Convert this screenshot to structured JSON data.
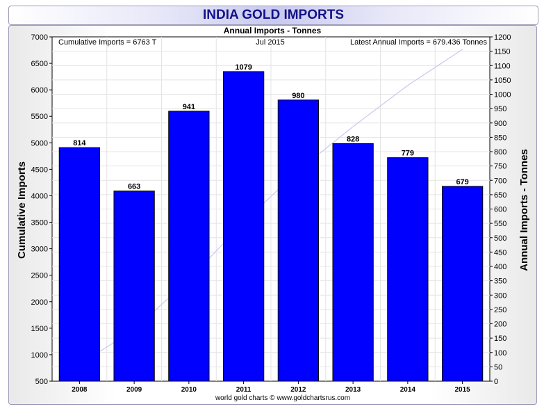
{
  "title": "INDIA GOLD IMPORTS",
  "chart_data": {
    "type": "bar",
    "subtitle": "Annual Imports - Tonnes",
    "categories": [
      "2008",
      "2009",
      "2010",
      "2011",
      "2012",
      "2013",
      "2014",
      "2015"
    ],
    "series": [
      {
        "name": "Annual Imports - Tonnes",
        "axis": "right",
        "values": [
          814,
          663,
          941,
          1079,
          980,
          828,
          779,
          679
        ],
        "color": "#0000ff"
      },
      {
        "name": "Cumulative Imports",
        "axis": "left",
        "type": "line",
        "values": [
          814,
          1477,
          2418,
          3497,
          4477,
          5305,
          6084,
          6763
        ],
        "color": "#c8c8f0"
      }
    ],
    "data_labels": [
      "814",
      "663",
      "941",
      "1079",
      "980",
      "828",
      "779",
      "679"
    ],
    "ylabel_left": "Cumulative Imports",
    "ylabel_right": "Annual Imports - Tonnes",
    "ylim_left": [
      500,
      7000
    ],
    "ylim_right": [
      0,
      1200
    ],
    "yticks_left": [
      "500",
      "1000",
      "1500",
      "2000",
      "2500",
      "3000",
      "3500",
      "4000",
      "4500",
      "5000",
      "5500",
      "6000",
      "6500",
      "7000"
    ],
    "yticks_right": [
      "0",
      "50",
      "100",
      "150",
      "200",
      "250",
      "300",
      "350",
      "400",
      "450",
      "500",
      "550",
      "600",
      "650",
      "700",
      "750",
      "800",
      "850",
      "900",
      "950",
      "1000",
      "1050",
      "1100",
      "1150",
      "1200"
    ],
    "grid": true,
    "annotations": {
      "left": "Cumulative Imports = 6763 T",
      "center": "Jul 2015",
      "right": "Latest Annual Imports = 679.436 Tonnes"
    },
    "footer": "world gold charts © www.goldchartsrus.com"
  }
}
